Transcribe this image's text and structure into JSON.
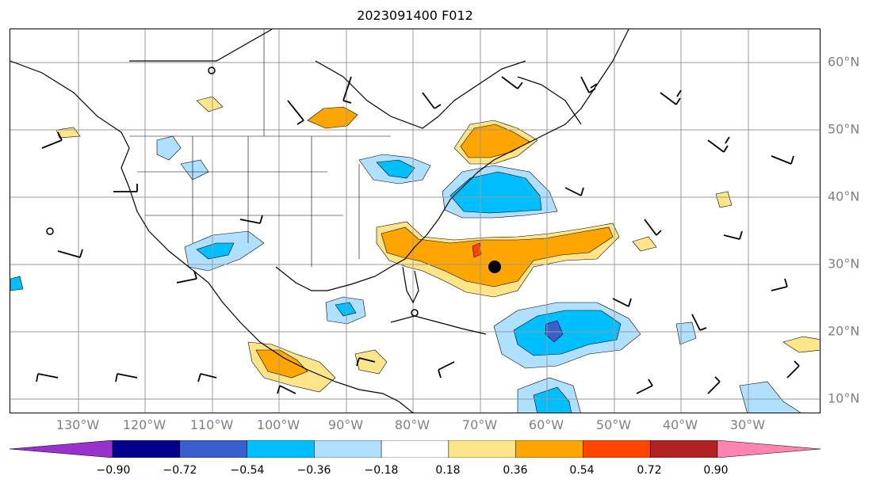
{
  "title": "2023091400 F012",
  "lon_labels": [
    "130°W",
    "120°W",
    "110°W",
    "100°W",
    "90°W",
    "80°W",
    "70°W",
    "60°W",
    "50°W",
    "40°W",
    "30°W"
  ],
  "lat_labels": [
    "60°N",
    "50°N",
    "40°N",
    "30°N",
    "20°N",
    "10°N"
  ],
  "colorbar": {
    "tick_labels": [
      "−0.90",
      "−0.72",
      "−0.54",
      "−0.36",
      "−0.18",
      "0.18",
      "0.36",
      "0.54",
      "0.72",
      "0.90"
    ],
    "colors": [
      "#9932cc",
      "#00008b",
      "#3a5fcd",
      "#00bfff",
      "#b0e0ff",
      "#ffffff",
      "#ffe58a",
      "#ffa500",
      "#ff4500",
      "#b22222",
      "#ff85b0"
    ]
  },
  "colors": {
    "grid": "#999999",
    "coast": "#000000",
    "label_gray": "#808080"
  }
}
